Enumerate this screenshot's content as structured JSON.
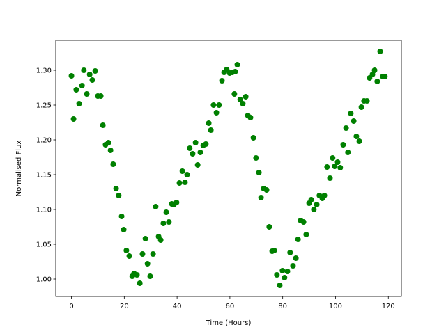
{
  "chart_data": {
    "type": "scatter",
    "xlabel": "Time (Hours)",
    "ylabel": "Normalised Flux",
    "color": "#008000",
    "x": [
      0,
      0.8,
      1.8,
      2.9,
      4.0,
      4.7,
      5.8,
      6.9,
      7.9,
      9.0,
      10.0,
      11.1,
      11.9,
      12.9,
      14.0,
      14.8,
      15.8,
      16.9,
      17.9,
      19.0,
      19.8,
      20.8,
      21.9,
      23.0,
      23.7,
      24.8,
      25.9,
      26.9,
      28.0,
      28.8,
      29.8,
      30.9,
      31.9,
      33.0,
      33.8,
      34.8,
      35.9,
      36.9,
      38.0,
      38.8,
      39.8,
      40.9,
      42.0,
      43.0,
      43.8,
      44.8,
      45.9,
      47.0,
      47.8,
      48.8,
      49.9,
      50.9,
      52.0,
      52.8,
      53.8,
      54.9,
      55.9,
      57.0,
      57.8,
      58.8,
      59.9,
      60.9,
      61.7,
      62.0,
      62.8,
      63.9,
      64.9,
      66.0,
      66.8,
      67.8,
      68.9,
      69.9,
      71.0,
      71.8,
      72.8,
      73.9,
      74.9,
      76.0,
      76.8,
      77.8,
      78.9,
      79.9,
      80.7,
      81.8,
      82.8,
      83.9,
      85.0,
      85.8,
      86.8,
      87.9,
      88.9,
      90.0,
      90.8,
      91.8,
      92.9,
      93.9,
      95.0,
      95.8,
      96.8,
      97.9,
      98.9,
      99.7,
      100.8,
      101.8,
      102.9,
      104.0,
      104.7,
      105.8,
      106.9,
      107.9,
      109.0,
      109.8,
      110.8,
      111.9,
      112.9,
      114.0,
      114.8,
      115.8,
      116.9,
      117.9,
      118.7
    ],
    "values": [
      1.292,
      1.23,
      1.272,
      1.252,
      1.278,
      1.3,
      1.266,
      1.294,
      1.286,
      1.299,
      1.263,
      1.263,
      1.221,
      1.193,
      1.196,
      1.185,
      1.165,
      1.13,
      1.12,
      1.09,
      1.071,
      1.041,
      1.033,
      1.004,
      1.008,
      1.006,
      0.994,
      1.036,
      1.058,
      1.022,
      1.004,
      1.036,
      1.104,
      1.061,
      1.056,
      1.08,
      1.096,
      1.082,
      1.108,
      1.107,
      1.11,
      1.138,
      1.155,
      1.139,
      1.15,
      1.188,
      1.18,
      1.196,
      1.164,
      1.182,
      1.192,
      1.194,
      1.224,
      1.214,
      1.25,
      1.239,
      1.25,
      1.285,
      1.297,
      1.301,
      1.296,
      1.297,
      1.266,
      1.298,
      1.308,
      1.258,
      1.252,
      1.262,
      1.235,
      1.232,
      1.203,
      1.174,
      1.153,
      1.117,
      1.13,
      1.128,
      1.075,
      1.04,
      1.041,
      1.006,
      0.991,
      1.012,
      1.002,
      1.011,
      1.038,
      1.019,
      1.03,
      1.057,
      1.084,
      1.082,
      1.064,
      1.109,
      1.114,
      1.1,
      1.107,
      1.12,
      1.116,
      1.12,
      1.161,
      1.145,
      1.174,
      1.162,
      1.168,
      1.16,
      1.193,
      1.217,
      1.182,
      1.238,
      1.227,
      1.205,
      1.198,
      1.247,
      1.256,
      1.256,
      1.289,
      1.294,
      1.3,
      1.284,
      1.327,
      1.291,
      1.291
    ],
    "xlim": [
      -5.95,
      124.95
    ],
    "xticks": [
      0,
      20,
      40,
      60,
      80,
      100,
      120
    ],
    "ylim": [
      0.975,
      1.343
    ],
    "yticks": [
      {
        "value": 1,
        "label": "1.00"
      },
      {
        "value": 1.05,
        "label": "1.05"
      },
      {
        "value": 1.1,
        "label": "1.10"
      },
      {
        "value": 1.15,
        "label": "1.15"
      },
      {
        "value": 1.2,
        "label": "1.20"
      },
      {
        "value": 1.25,
        "label": "1.25"
      },
      {
        "value": 1.3,
        "label": "1.30"
      }
    ]
  }
}
